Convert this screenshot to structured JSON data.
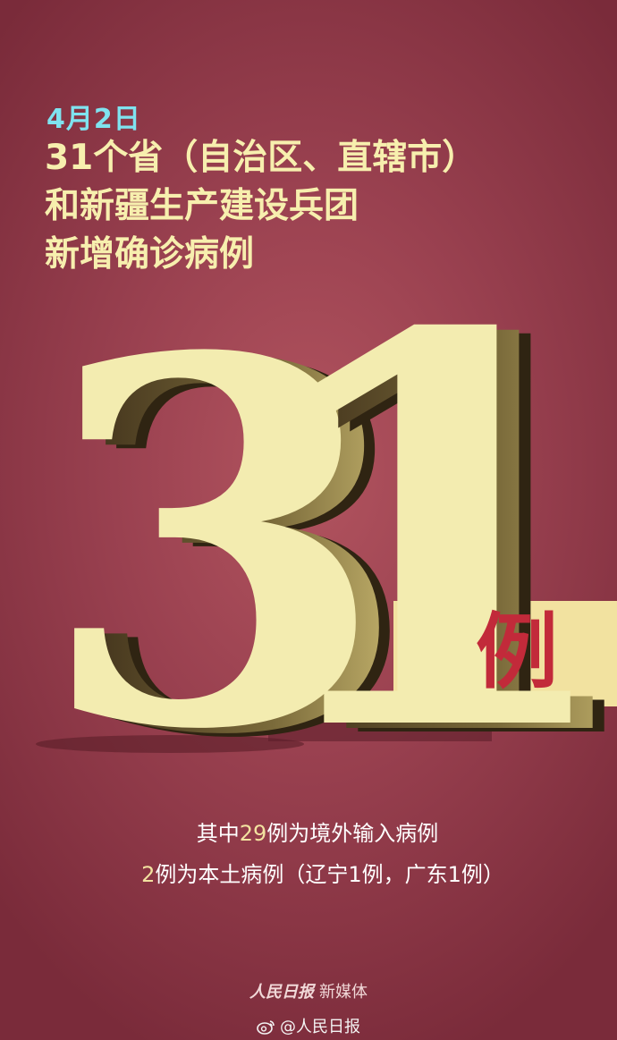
{
  "date": "4月2日",
  "headline": {
    "line1": "31个省（自治区、直辖市）",
    "line2": "和新疆生产建设兵团",
    "line3": "新增确诊病例"
  },
  "count": {
    "digit1": "3",
    "digit2": "1",
    "unit": "例"
  },
  "details": {
    "line1_prefix": "其中",
    "line1_number": "29",
    "line1_suffix": "例为境外输入病例",
    "line2_number": "2",
    "line2_suffix": "例为本土病例（辽宁1例，广东1例）"
  },
  "brand": {
    "logo": "人民日报",
    "suffix": "新媒体"
  },
  "watermark": {
    "handle": "@人民日报"
  },
  "colors": {
    "background": "#9a4150",
    "headline": "#f7efae",
    "date": "#7fe3ef",
    "number_face": "#f3ecb0",
    "unit": "#c22a3a"
  }
}
